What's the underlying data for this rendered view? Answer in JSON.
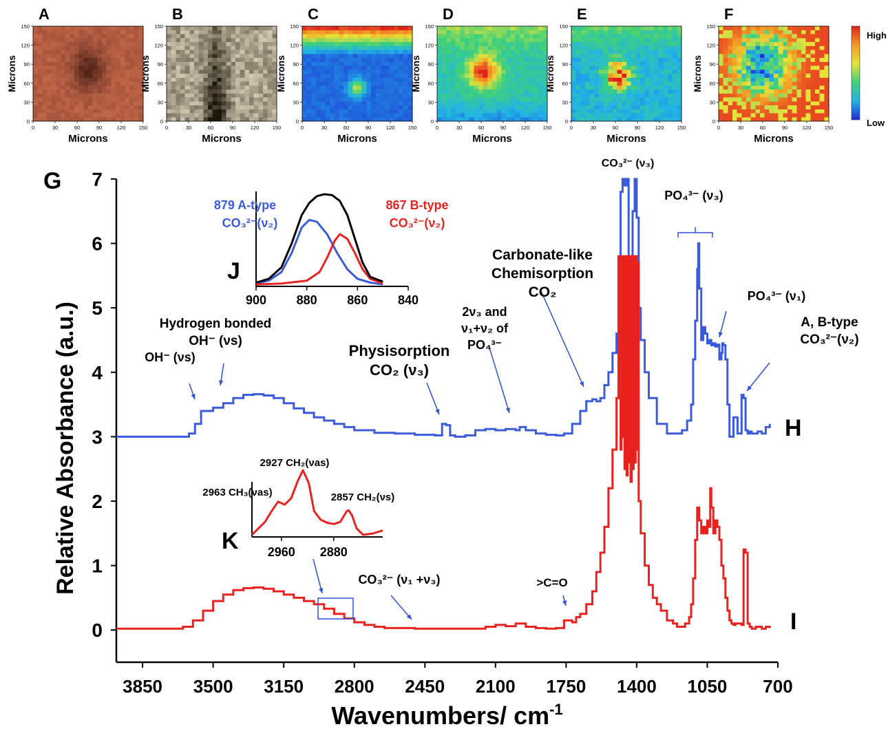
{
  "colors": {
    "blue_trace": "#3b5bdb",
    "red_trace": "#e8231f",
    "black_trace": "#000000",
    "annotation_blue": "#2f4fd8",
    "annotation_red": "#e8231f",
    "colorbar": [
      "#1f2bd6",
      "#21b4e6",
      "#3fd07a",
      "#e8e23a",
      "#f39a25",
      "#e11f1f"
    ]
  },
  "image_panels": [
    {
      "letter": "A",
      "kind": "photo",
      "palette": "tan",
      "ylabel": "Microns",
      "xlabel": "Microns",
      "ticks": [
        "0",
        "30",
        "60",
        "90",
        "120",
        "150"
      ]
    },
    {
      "letter": "B",
      "kind": "photo",
      "palette": "gray",
      "ylabel": "Microns",
      "xlabel": "Microns",
      "ticks": [
        "0",
        "30",
        "60",
        "90",
        "120",
        "150"
      ]
    },
    {
      "letter": "C",
      "kind": "heatmap",
      "pattern": "top-band",
      "ylabel": "Microns",
      "xlabel": "Microns",
      "ticks": [
        "0",
        "30",
        "60",
        "90",
        "120",
        "150"
      ]
    },
    {
      "letter": "D",
      "kind": "heatmap",
      "pattern": "central-blob",
      "ylabel": "Microns",
      "xlabel": "Microns",
      "ticks": [
        "0",
        "30",
        "60",
        "90",
        "120",
        "150"
      ]
    },
    {
      "letter": "E",
      "kind": "heatmap",
      "pattern": "central-spots",
      "ylabel": "Microns",
      "xlabel": "Microns",
      "ticks": [
        "0",
        "30",
        "60",
        "90",
        "120",
        "150"
      ]
    },
    {
      "letter": "F",
      "kind": "heatmap",
      "pattern": "red-noisy",
      "ylabel": "Microns",
      "xlabel": "Microns",
      "ticks": [
        "0",
        "30",
        "60",
        "90",
        "120",
        "150"
      ]
    }
  ],
  "colorbar_labels": {
    "high": "High",
    "low": "Low"
  },
  "panel_letters": {
    "G": "G",
    "H": "H",
    "I": "I",
    "J": "J",
    "K": "K"
  },
  "chart_data": [
    {
      "type": "line",
      "panel": "G",
      "xlabel": "Wavenumbers/ cm",
      "xlabel_superscript": "-1",
      "ylabel": "Relative Absorbance (a.u.)",
      "xlim": [
        3980,
        700
      ],
      "ylim": [
        -0.5,
        7
      ],
      "x_reversed": true,
      "x_ticks": [
        3850,
        3500,
        3150,
        2800,
        2450,
        2100,
        1750,
        1400,
        1050,
        700
      ],
      "y_ticks": [
        0,
        1,
        2,
        3,
        4,
        5,
        6,
        7
      ],
      "series": [
        {
          "label": "H",
          "color": "#3b5bdb",
          "x": [
            3980,
            3650,
            3620,
            3590,
            3560,
            3500,
            3450,
            3400,
            3350,
            3300,
            3250,
            3200,
            3150,
            3100,
            3050,
            3000,
            2950,
            2900,
            2850,
            2800,
            2700,
            2600,
            2500,
            2400,
            2365,
            2345,
            2325,
            2300,
            2250,
            2200,
            2150,
            2100,
            2050,
            2000,
            1980,
            1950,
            1900,
            1850,
            1800,
            1760,
            1720,
            1680,
            1650,
            1620,
            1600,
            1580,
            1560,
            1540,
            1520,
            1500,
            1490,
            1480,
            1470,
            1460,
            1450,
            1440,
            1430,
            1420,
            1410,
            1400,
            1390,
            1380,
            1360,
            1340,
            1300,
            1250,
            1200,
            1175,
            1150,
            1130,
            1120,
            1110,
            1100,
            1095,
            1090,
            1080,
            1070,
            1060,
            1050,
            1040,
            1030,
            1020,
            1010,
            1000,
            990,
            980,
            975,
            970,
            960,
            950,
            940,
            930,
            920,
            910,
            900,
            880,
            870,
            860,
            850,
            840,
            830,
            800,
            780,
            760,
            740
          ],
          "y": [
            3.0,
            3.0,
            3.05,
            3.2,
            3.4,
            3.45,
            3.52,
            3.6,
            3.65,
            3.66,
            3.64,
            3.6,
            3.52,
            3.44,
            3.37,
            3.3,
            3.25,
            3.2,
            3.15,
            3.1,
            3.06,
            3.05,
            3.03,
            3.02,
            3.2,
            3.18,
            3.02,
            3.0,
            3.02,
            3.1,
            3.12,
            3.1,
            3.12,
            3.1,
            3.15,
            3.1,
            3.05,
            3.03,
            3.02,
            3.05,
            3.2,
            3.4,
            3.55,
            3.58,
            3.55,
            3.6,
            3.8,
            4.0,
            4.3,
            4.6,
            5.5,
            6.8,
            7.0,
            6.9,
            7.0,
            5.8,
            5.6,
            6.5,
            7.0,
            6.4,
            5.0,
            4.5,
            4.0,
            3.6,
            3.2,
            3.05,
            3.05,
            3.1,
            3.25,
            3.5,
            4.2,
            4.8,
            5.6,
            6.0,
            5.3,
            4.5,
            4.7,
            4.6,
            4.45,
            4.5,
            4.42,
            4.45,
            4.4,
            4.43,
            4.2,
            4.3,
            4.45,
            4.42,
            4.2,
            3.5,
            3.0,
            3.0,
            3.3,
            3.3,
            3.05,
            3.65,
            3.6,
            3.1,
            3.05,
            3.08,
            3.05,
            3.08,
            3.05,
            3.15,
            3.2
          ]
        },
        {
          "label": "I",
          "color": "#e8231f",
          "x": [
            3980,
            3700,
            3650,
            3600,
            3550,
            3500,
            3450,
            3400,
            3350,
            3300,
            3250,
            3200,
            3150,
            3100,
            3050,
            3000,
            2950,
            2900,
            2850,
            2800,
            2750,
            2700,
            2650,
            2600,
            2500,
            2400,
            2300,
            2200,
            2150,
            2100,
            2050,
            2000,
            1950,
            1900,
            1850,
            1800,
            1760,
            1720,
            1700,
            1680,
            1650,
            1620,
            1600,
            1580,
            1560,
            1540,
            1520,
            1500,
            1490,
            1480,
            1475,
            1470,
            1465,
            1460,
            1455,
            1450,
            1445,
            1440,
            1435,
            1430,
            1425,
            1420,
            1415,
            1410,
            1405,
            1400,
            1395,
            1390,
            1380,
            1360,
            1340,
            1320,
            1300,
            1280,
            1250,
            1220,
            1200,
            1180,
            1160,
            1140,
            1130,
            1120,
            1110,
            1100,
            1090,
            1080,
            1070,
            1060,
            1050,
            1040,
            1035,
            1030,
            1020,
            1010,
            1000,
            990,
            980,
            970,
            960,
            950,
            940,
            930,
            920,
            910,
            900,
            890,
            880,
            870,
            860,
            850,
            840,
            830,
            810,
            780,
            760,
            740
          ],
          "y": [
            0.02,
            0.02,
            0.05,
            0.15,
            0.3,
            0.45,
            0.55,
            0.62,
            0.65,
            0.66,
            0.64,
            0.6,
            0.55,
            0.5,
            0.45,
            0.4,
            0.33,
            0.25,
            0.18,
            0.12,
            0.08,
            0.05,
            0.03,
            0.03,
            0.02,
            0.02,
            0.02,
            0.02,
            0.05,
            0.08,
            0.06,
            0.1,
            0.05,
            0.03,
            0.02,
            0.03,
            0.15,
            0.12,
            0.2,
            0.25,
            0.4,
            0.6,
            0.9,
            1.2,
            1.6,
            2.2,
            2.8,
            3.6,
            5.8,
            2.8,
            5.8,
            3.0,
            5.8,
            2.5,
            5.8,
            2.4,
            5.8,
            2.6,
            5.8,
            2.3,
            5.8,
            2.5,
            5.8,
            2.6,
            5.8,
            2.8,
            5.7,
            2.0,
            1.5,
            1.0,
            0.7,
            0.5,
            0.4,
            0.3,
            0.15,
            0.1,
            0.05,
            0.05,
            0.1,
            0.2,
            0.4,
            0.8,
            1.4,
            1.9,
            1.7,
            1.5,
            1.6,
            1.5,
            1.7,
            1.6,
            2.2,
            1.9,
            1.5,
            1.7,
            1.6,
            1.4,
            1.0,
            0.8,
            0.5,
            0.3,
            0.15,
            0.1,
            0.08,
            0.1,
            0.1,
            0.1,
            0.08,
            1.25,
            1.2,
            0.1,
            0.05,
            0.02,
            0.05,
            0.02,
            0.05,
            0.03
          ]
        }
      ],
      "annotations": [
        {
          "key": "co3_v3",
          "color": "#000000",
          "lines": [
            "CO₃²⁻ (ν₃)"
          ]
        },
        {
          "key": "po4_v3",
          "color": "#000000",
          "lines": [
            "PO₄³⁻ (ν₃)"
          ]
        },
        {
          "key": "carbonate_like",
          "color": "#000000",
          "lines": [
            "Carbonate-like",
            "Chemisorption",
            "CO₂"
          ]
        },
        {
          "key": "po4_v1",
          "color": "#000000",
          "lines": [
            "PO₄³⁻ (ν₁)"
          ]
        },
        {
          "key": "ab_type",
          "color": "#000000",
          "lines": [
            "A, B-type",
            "CO₃²⁻(ν₂)"
          ]
        },
        {
          "key": "two_v3",
          "color": "#000000",
          "lines": [
            "2ν₃ and",
            "ν₁+ν₂ of",
            "PO₄³⁻"
          ]
        },
        {
          "key": "physisorption",
          "color": "#000000",
          "lines": [
            "Physisorption",
            "CO₂ (ν₃)"
          ]
        },
        {
          "key": "hydrogen_bonded",
          "color": "#000000",
          "lines": [
            "Hydrogen bonded",
            "OH⁻ (νs)"
          ]
        },
        {
          "key": "oh_vs",
          "color": "#000000",
          "lines": [
            "OH⁻ (νs)"
          ]
        },
        {
          "key": "co3_v1v3",
          "color": "#000000",
          "lines": [
            "CO₃²⁻ (ν₁ +ν₃)"
          ]
        },
        {
          "key": "c_o",
          "color": "#000000",
          "lines": [
            ">C=O"
          ]
        }
      ]
    },
    {
      "type": "line",
      "panel": "J",
      "xlim": [
        900,
        840
      ],
      "x_ticks": [
        900,
        880,
        860,
        840
      ],
      "series": [
        {
          "name": "879 A-type",
          "subname": "CO₃²⁻(ν₂)",
          "color": "#3b5bdb",
          "x": [
            900,
            895,
            890,
            886,
            882,
            879,
            876,
            872,
            868,
            864,
            860,
            855,
            850
          ],
          "y": [
            0.03,
            0.06,
            0.15,
            0.35,
            0.62,
            0.7,
            0.68,
            0.55,
            0.35,
            0.18,
            0.08,
            0.04,
            0.02
          ]
        },
        {
          "name": "867 B-type",
          "subname": "CO₃²⁻(ν₂)",
          "color": "#e8231f",
          "x": [
            900,
            890,
            880,
            875,
            872,
            869,
            867,
            864,
            861,
            858,
            855,
            850
          ],
          "y": [
            0.02,
            0.03,
            0.06,
            0.15,
            0.3,
            0.48,
            0.55,
            0.5,
            0.35,
            0.18,
            0.08,
            0.03
          ]
        },
        {
          "name": "",
          "color": "#000000",
          "x": [
            900,
            895,
            890,
            886,
            882,
            879,
            876,
            873,
            870,
            867,
            864,
            861,
            858,
            855,
            850
          ],
          "y": [
            0.04,
            0.08,
            0.2,
            0.45,
            0.75,
            0.88,
            0.95,
            0.97,
            0.96,
            0.9,
            0.75,
            0.5,
            0.25,
            0.1,
            0.05
          ]
        }
      ]
    },
    {
      "type": "line",
      "panel": "K",
      "xlim": [
        3005,
        2805
      ],
      "x_ticks": [
        2960,
        2880
      ],
      "series": [
        {
          "name": "",
          "color": "#e8231f",
          "x": [
            3005,
            2985,
            2975,
            2965,
            2955,
            2945,
            2935,
            2927,
            2918,
            2910,
            2900,
            2890,
            2880,
            2870,
            2860,
            2857,
            2852,
            2845,
            2835,
            2820,
            2805
          ],
          "y": [
            0.05,
            0.35,
            0.6,
            0.82,
            0.75,
            0.9,
            1.3,
            1.55,
            1.25,
            0.6,
            0.4,
            0.33,
            0.3,
            0.35,
            0.6,
            0.62,
            0.5,
            0.2,
            0.05,
            0.08,
            0.15
          ]
        }
      ],
      "annotations": [
        {
          "key": "ch2_as",
          "color": "#000000",
          "lines": [
            "2927 CH₂(νas)"
          ]
        },
        {
          "key": "ch3_as",
          "color": "#000000",
          "lines": [
            "2963 CH₃(νas)"
          ]
        },
        {
          "key": "ch2_s",
          "color": "#000000",
          "lines": [
            "2857 CH₂(νs)"
          ]
        }
      ]
    }
  ]
}
